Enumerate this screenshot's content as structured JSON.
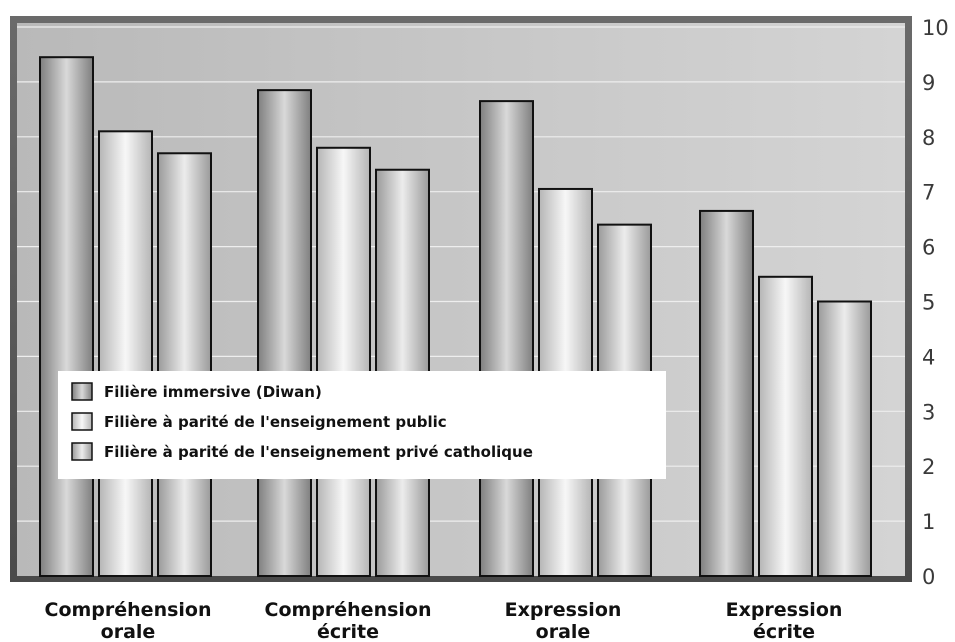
{
  "chart_data": {
    "type": "bar",
    "categories": [
      [
        "Compréhension",
        "orale"
      ],
      [
        "Compréhension",
        "écrite"
      ],
      [
        "Expression",
        "orale"
      ],
      [
        "Expression",
        "écrite"
      ]
    ],
    "series": [
      {
        "name": "Filière immersive (Diwan)",
        "values": [
          9.45,
          8.85,
          8.65,
          6.65
        ],
        "colors": [
          "#7f7f7f",
          "#d9d9d9"
        ]
      },
      {
        "name": "Filière à parité de l'enseignement public",
        "values": [
          8.1,
          7.8,
          7.05,
          5.45
        ],
        "colors": [
          "#b5b5b5",
          "#f7f7f7"
        ]
      },
      {
        "name": "Filière à parité de l'enseignement privé catholique",
        "values": [
          7.7,
          7.4,
          6.4,
          5.0
        ],
        "colors": [
          "#9a9a9a",
          "#ececec"
        ]
      }
    ],
    "ylim": [
      0,
      10
    ],
    "yticks": [
      "0",
      "1",
      "2",
      "3",
      "4",
      "5",
      "6",
      "7",
      "8",
      "9",
      "10"
    ],
    "y_axis_side": "right",
    "grid": true,
    "legend_position": "lower-left"
  }
}
